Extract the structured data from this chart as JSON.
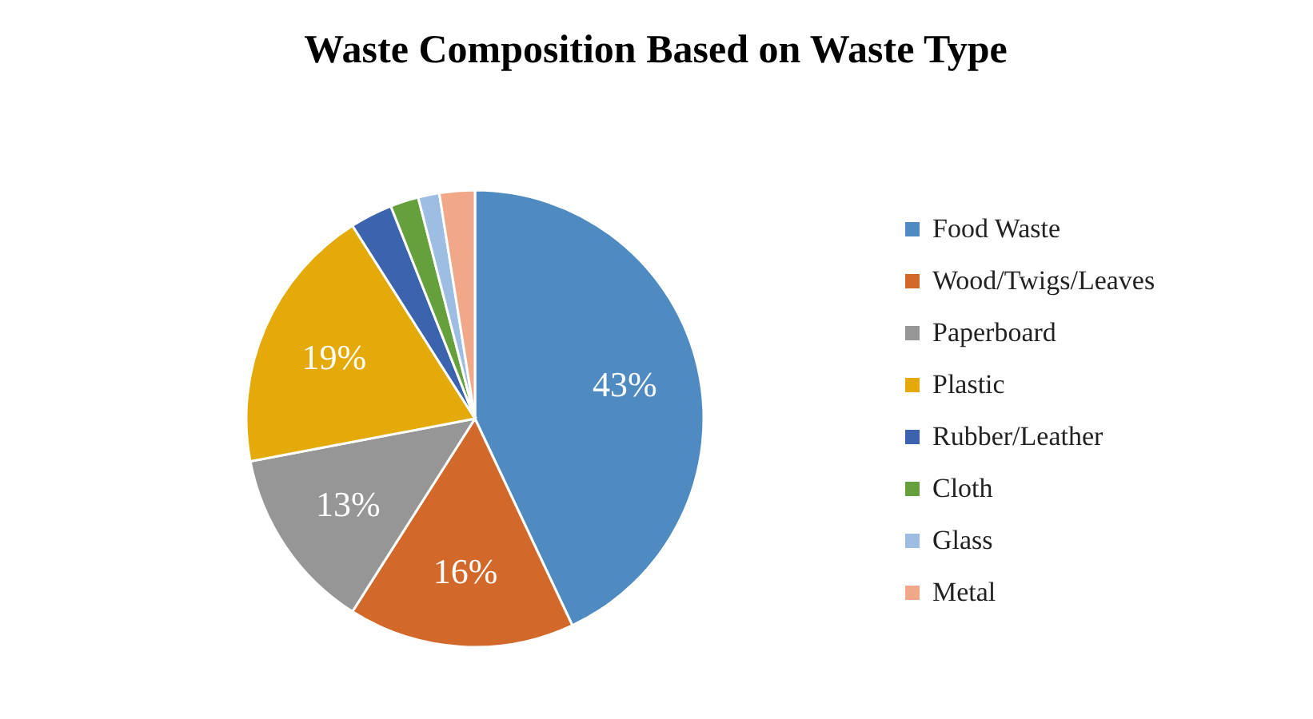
{
  "chart_data": {
    "type": "pie",
    "title": "Waste Composition Based on Waste Type",
    "categories": [
      "Food Waste",
      "Wood/Twigs/Leaves",
      "Paperboard",
      "Plastic",
      "Rubber/Leather",
      "Cloth",
      "Glass",
      "Metal"
    ],
    "values": [
      43,
      16,
      13,
      19,
      3,
      2,
      1.5,
      2.5
    ],
    "colors": [
      "#4f8bc0",
      "#d2692b",
      "#969696",
      "#e3aa0a",
      "#3b63ae",
      "#66a03c",
      "#9dbde3",
      "#f0a889"
    ],
    "value_labels": [
      "43%",
      "16%",
      "13%",
      "19%",
      null,
      null,
      null,
      null
    ],
    "legend": "right"
  }
}
